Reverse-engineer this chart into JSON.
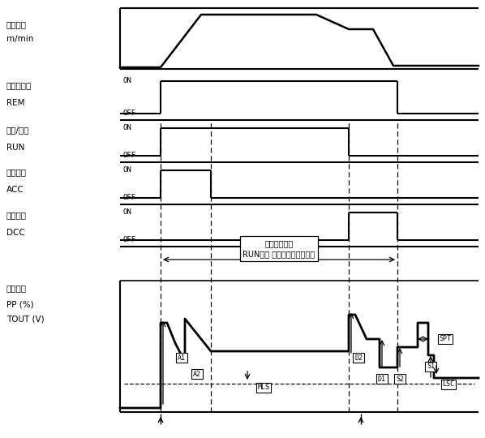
{
  "bg_color": "#ffffff",
  "line_color": "#000000",
  "fig_width": 5.98,
  "fig_height": 5.4,
  "dpi": 100,
  "labels": {
    "speed_line1": "운전속도",
    "speed_line2": "m/min",
    "rem_line1": "출력리모트",
    "rem_line2": "REM",
    "run_line1": "운전/정지",
    "run_line2": "RUN",
    "acc_line1": "가속게인",
    "acc_line2": "ACC",
    "dcc_line1": "감속게인",
    "dcc_line2": "DCC",
    "pp_line1": "제어출력",
    "pp_line2": "PP (%)",
    "pp_line3": "TOUT (V)"
  },
  "annotation_line1": "권경연산실행",
  "annotation_line2": "RUN부터 스톱타이머종료까지",
  "point_labels": {
    "A1": "A1",
    "A2": "A2",
    "D2": "D2",
    "D1": "D1",
    "S2": "S2",
    "S1": "S1",
    "SPT": "SPT",
    "MLS": "MLS",
    "LSC": "LSC"
  }
}
